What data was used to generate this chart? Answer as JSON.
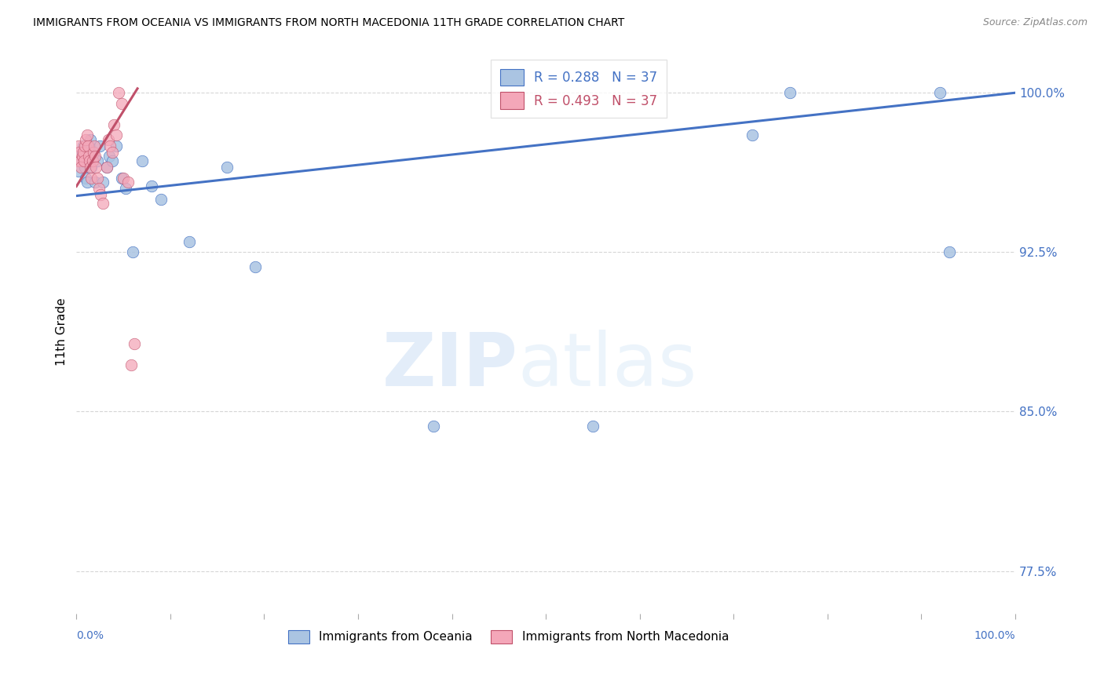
{
  "title": "IMMIGRANTS FROM OCEANIA VS IMMIGRANTS FROM NORTH MACEDONIA 11TH GRADE CORRELATION CHART",
  "source": "Source: ZipAtlas.com",
  "ylabel": "11th Grade",
  "ylabel_ticks": [
    0.775,
    0.85,
    0.925,
    1.0
  ],
  "ylabel_tick_labels": [
    "77.5%",
    "85.0%",
    "92.5%",
    "100.0%"
  ],
  "xlim": [
    0.0,
    1.0
  ],
  "ylim": [
    0.755,
    1.02
  ],
  "legend_blue_r": "R = 0.288",
  "legend_blue_n": "N = 37",
  "legend_pink_r": "R = 0.493",
  "legend_pink_n": "N = 37",
  "blue_color": "#aac4e2",
  "blue_line_color": "#4472c4",
  "pink_color": "#f4a7b9",
  "pink_line_color": "#c0506a",
  "blue_dots_x": [
    0.002,
    0.004,
    0.006,
    0.007,
    0.008,
    0.009,
    0.01,
    0.011,
    0.012,
    0.013,
    0.014,
    0.015,
    0.016,
    0.018,
    0.02,
    0.022,
    0.025,
    0.028,
    0.032,
    0.035,
    0.038,
    0.042,
    0.048,
    0.052,
    0.06,
    0.07,
    0.08,
    0.09,
    0.12,
    0.16,
    0.19,
    0.38,
    0.55,
    0.72,
    0.76,
    0.92,
    0.93
  ],
  "blue_dots_y": [
    0.963,
    0.968,
    0.972,
    0.975,
    0.97,
    0.965,
    0.96,
    0.958,
    0.972,
    0.968,
    0.975,
    0.978,
    0.965,
    0.97,
    0.958,
    0.968,
    0.975,
    0.958,
    0.965,
    0.97,
    0.968,
    0.975,
    0.96,
    0.955,
    0.925,
    0.968,
    0.956,
    0.95,
    0.93,
    0.965,
    0.918,
    0.843,
    0.843,
    0.98,
    1.0,
    1.0,
    0.925
  ],
  "pink_dots_x": [
    0.001,
    0.002,
    0.003,
    0.004,
    0.005,
    0.006,
    0.007,
    0.008,
    0.009,
    0.01,
    0.011,
    0.012,
    0.013,
    0.014,
    0.015,
    0.016,
    0.017,
    0.018,
    0.019,
    0.02,
    0.021,
    0.022,
    0.024,
    0.026,
    0.028,
    0.032,
    0.034,
    0.036,
    0.038,
    0.04,
    0.042,
    0.045,
    0.048,
    0.05,
    0.055,
    0.058,
    0.062
  ],
  "pink_dots_y": [
    0.968,
    0.975,
    0.972,
    0.968,
    0.965,
    0.97,
    0.972,
    0.968,
    0.975,
    0.978,
    0.98,
    0.975,
    0.97,
    0.968,
    0.965,
    0.96,
    0.968,
    0.972,
    0.975,
    0.97,
    0.965,
    0.96,
    0.955,
    0.952,
    0.948,
    0.965,
    0.978,
    0.975,
    0.972,
    0.985,
    0.98,
    1.0,
    0.995,
    0.96,
    0.958,
    0.872,
    0.882
  ],
  "blue_trendline": [
    0.0,
    0.9515,
    1.0,
    1.0
  ],
  "pink_trendline_x": [
    0.0,
    0.065
  ],
  "pink_trendline_y": [
    0.956,
    1.002
  ],
  "watermark_zip": "ZIP",
  "watermark_atlas": "atlas",
  "background_color": "#ffffff",
  "grid_color": "#cccccc"
}
